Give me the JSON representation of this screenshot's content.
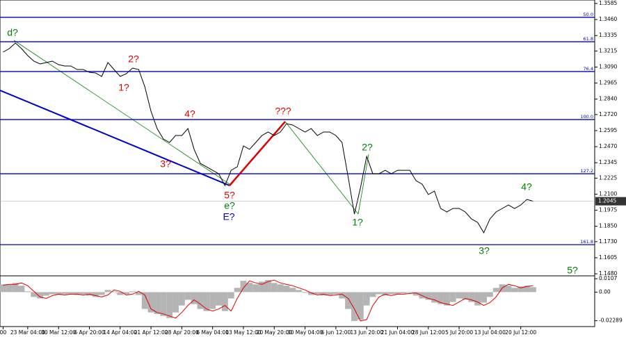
{
  "chart_data": [
    {
      "type": "line",
      "color": "#000000",
      "x": [
        0,
        2,
        4,
        6,
        8,
        10,
        12,
        14,
        16,
        18,
        20,
        22,
        24,
        26,
        28,
        30,
        32,
        34,
        36,
        38,
        40,
        42,
        44,
        46,
        48,
        50,
        52,
        54,
        56,
        58,
        60,
        62,
        64,
        66,
        68,
        70,
        72,
        74,
        76,
        78,
        80,
        82,
        84,
        86,
        88,
        90,
        92,
        94,
        96,
        98,
        100,
        102,
        104,
        106,
        108,
        110,
        112,
        114,
        116,
        118,
        120,
        122,
        124,
        126,
        128,
        130,
        132,
        134,
        136,
        138,
        140,
        142,
        144,
        146,
        148,
        150,
        152,
        154,
        156,
        158,
        160,
        162,
        164,
        166,
        168,
        170,
        172
      ],
      "values": [
        1.3206,
        1.3233,
        1.3277,
        1.3233,
        1.3179,
        1.3136,
        1.3114,
        1.3125,
        1.3136,
        1.3109,
        1.3098,
        1.3098,
        1.3071,
        1.3071,
        1.3049,
        1.3044,
        1.3017,
        1.3125,
        1.3071,
        1.3017,
        1.3038,
        1.3082,
        1.3071,
        1.2936,
        1.2746,
        1.2611,
        1.253,
        1.2503,
        1.2557,
        1.2557,
        1.2611,
        1.2449,
        1.234,
        1.2313,
        1.2286,
        1.2259,
        1.2167,
        1.2286,
        1.2313,
        1.2476,
        1.2449,
        1.2503,
        1.2557,
        1.2584,
        1.2557,
        1.2584,
        1.2649,
        1.2638,
        1.2611,
        1.2584,
        1.2611,
        1.2557,
        1.2584,
        1.2584,
        1.2557,
        1.2503,
        1.2232,
        1.1945,
        1.2151,
        1.2394,
        1.2259,
        1.2259,
        1.2286,
        1.2259,
        1.2286,
        1.2286,
        1.2286,
        1.2205,
        1.2178,
        1.2097,
        1.2124,
        1.1989,
        1.1962,
        1.1989,
        1.1989,
        1.1962,
        1.1907,
        1.188,
        1.18,
        1.1907,
        1.1962,
        1.1989,
        1.2016,
        1.1989,
        1.2016,
        1.2059,
        1.2045
      ],
      "xlim": [
        -1,
        192
      ],
      "ylim": [
        1.1464,
        1.3612
      ],
      "yticks": [
        1.3585,
        {
          "value": 1.346,
          "label": "1.3460"
        },
        1.3335,
        1.3215,
        {
          "value": 1.309,
          "label": "1.3090"
        },
        1.2965,
        {
          "value": 1.284,
          "label": "1.2840"
        },
        {
          "value": 1.272,
          "label": "1.2720"
        },
        1.2595,
        {
          "value": 1.247,
          "label": "1.2470"
        },
        1.2345,
        1.2225,
        {
          "value": 1.21,
          "label": "1.2100"
        },
        1.1975,
        {
          "value": 1.185,
          "label": "1.1850"
        },
        {
          "value": 1.173,
          "label": "1.1730"
        },
        1.1605,
        {
          "value": 1.148,
          "label": "1.1480"
        }
      ],
      "last_price": 1.2045,
      "levels": [
        {
          "label": "50.0",
          "value": 1.3477
        },
        {
          "label": "61.8",
          "value": 1.3287
        },
        {
          "label": "76.4",
          "value": 1.3055
        },
        {
          "label": "100.0",
          "value": 1.2681
        },
        {
          "label": "127.2",
          "value": 1.2259
        },
        {
          "label": "161.8",
          "value": 1.1707
        }
      ],
      "level_color": "#0000cc",
      "annotations": [
        "d?",
        "2?",
        "1?",
        "4?",
        "3?",
        "???",
        "5?",
        "e?",
        "E?",
        "2?",
        "1?",
        "3?",
        "4?",
        "5?"
      ]
    },
    {
      "type": "bar",
      "color": "#b4b4b4",
      "signal_color": "#e00000",
      "x": [
        0,
        2,
        4,
        6,
        8,
        10,
        12,
        14,
        16,
        18,
        20,
        22,
        24,
        26,
        28,
        30,
        32,
        34,
        36,
        38,
        40,
        42,
        44,
        46,
        48,
        50,
        52,
        54,
        56,
        58,
        60,
        62,
        64,
        66,
        68,
        70,
        72,
        74,
        76,
        78,
        80,
        82,
        84,
        86,
        88,
        90,
        92,
        94,
        96,
        98,
        100,
        102,
        104,
        106,
        108,
        110,
        112,
        114,
        116,
        118,
        120,
        122,
        124,
        126,
        128,
        130,
        132,
        134,
        136,
        138,
        140,
        142,
        144,
        146,
        148,
        150,
        152,
        154,
        156,
        158,
        160,
        162,
        164,
        166,
        168,
        170,
        172
      ],
      "values": [
        0.0062,
        0.0062,
        0.0073,
        0.0051,
        0.0006,
        -0.0039,
        -0.0051,
        -0.0028,
        -0.0017,
        -0.0023,
        -0.0017,
        -0.0017,
        -0.0023,
        -0.0017,
        -0.0028,
        -0.0039,
        -0.0023,
        0.0017,
        0.0006,
        -0.0023,
        -0.0017,
        0.0006,
        -0.0023,
        -0.0135,
        -0.0163,
        -0.0175,
        -0.0191,
        -0.0208,
        -0.0163,
        -0.0107,
        -0.0062,
        -0.0096,
        -0.0135,
        -0.0152,
        -0.0135,
        -0.0107,
        -0.0152,
        -0.0051,
        0.0034,
        0.009,
        0.0073,
        0.0062,
        0.0084,
        0.0096,
        0.0073,
        0.0062,
        0.0051,
        0.0034,
        0.0017,
        -0.0006,
        -0.0023,
        -0.0017,
        -0.0028,
        -0.0023,
        -0.0017,
        -0.0051,
        -0.0135,
        -0.0231,
        -0.022,
        -0.0107,
        -0.0039,
        -0.0017,
        -0.0028,
        -0.0017,
        -0.0017,
        -0.0011,
        -0.0006,
        -0.0028,
        -0.0051,
        -0.0062,
        -0.0084,
        -0.0096,
        -0.0107,
        -0.0079,
        -0.0051,
        -0.0062,
        -0.0079,
        -0.0107,
        -0.0084,
        -0.0039,
        0.0034,
        0.0062,
        0.0051,
        0.0034,
        0.0045,
        0.0051,
        0.0039
      ],
      "signal": [
        0.0055,
        0.0062,
        0.0062,
        0.0073,
        0.0051,
        0.0006,
        -0.0039,
        -0.0051,
        -0.0028,
        -0.0017,
        -0.0023,
        -0.0017,
        -0.0017,
        -0.0023,
        -0.0017,
        -0.0028,
        -0.0039,
        -0.0023,
        0.0017,
        0.0006,
        -0.0023,
        -0.0017,
        0.0006,
        -0.0023,
        -0.0135,
        -0.0163,
        -0.0175,
        -0.0191,
        -0.0208,
        -0.0163,
        -0.0107,
        -0.0062,
        -0.0096,
        -0.0135,
        -0.0152,
        -0.0135,
        -0.0107,
        -0.0152,
        -0.0051,
        0.0034,
        0.009,
        0.0073,
        0.0062,
        0.0084,
        0.0096,
        0.0073,
        0.0062,
        0.0051,
        0.0034,
        0.0017,
        -0.0006,
        -0.0023,
        -0.0017,
        -0.0028,
        -0.0023,
        -0.0017,
        -0.0051,
        -0.0135,
        -0.0231,
        -0.022,
        -0.0107,
        -0.0039,
        -0.0017,
        -0.0028,
        -0.0017,
        -0.0017,
        -0.0011,
        -0.0006,
        -0.0028,
        -0.0051,
        -0.0062,
        -0.0084,
        -0.0096,
        -0.0107,
        -0.0079,
        -0.0051,
        -0.0062,
        -0.0079,
        -0.0107,
        -0.0084,
        -0.0039,
        0.0034,
        0.0062,
        0.0051,
        0.0034,
        0.0045,
        0.0051
      ],
      "xlim": [
        -1,
        192
      ],
      "ylim": [
        -0.0276,
        0.013
      ],
      "yticks": [
        0.0107,
        {
          "value": 0,
          "label": "0.00"
        },
        -0.02289
      ],
      "xticks": [
        {
          "value": 0,
          "label": "00"
        },
        {
          "value": 8,
          "label": "23 Mar 04:00"
        },
        {
          "value": 18,
          "label": "30 Mar 12:00"
        },
        {
          "value": 28,
          "label": "6 Apr 20:00"
        },
        {
          "value": 38,
          "label": "14 Apr 04:00"
        },
        {
          "value": 48,
          "label": "21 Apr 12:00"
        },
        {
          "value": 58,
          "label": "28 Apr 20:00"
        },
        {
          "value": 68,
          "label": "6 May 04:00"
        },
        {
          "value": 78,
          "label": "13 May 12:00"
        },
        {
          "value": 88,
          "label": "20 May 20:00"
        },
        {
          "value": 98,
          "label": "30 May 04:00"
        },
        {
          "value": 108,
          "label": "6 Jun 12:00"
        },
        {
          "value": 118,
          "label": "13 Jun 20:00"
        },
        {
          "value": 128,
          "label": "21 Jun 04:00"
        },
        {
          "value": 138,
          "label": "28 Jun 12:00"
        },
        {
          "value": 148,
          "label": "5 Jul 20:00"
        },
        {
          "value": 158,
          "label": "13 Jul 04:00"
        },
        {
          "value": 168,
          "label": "20 Jul 12:00"
        }
      ]
    }
  ]
}
